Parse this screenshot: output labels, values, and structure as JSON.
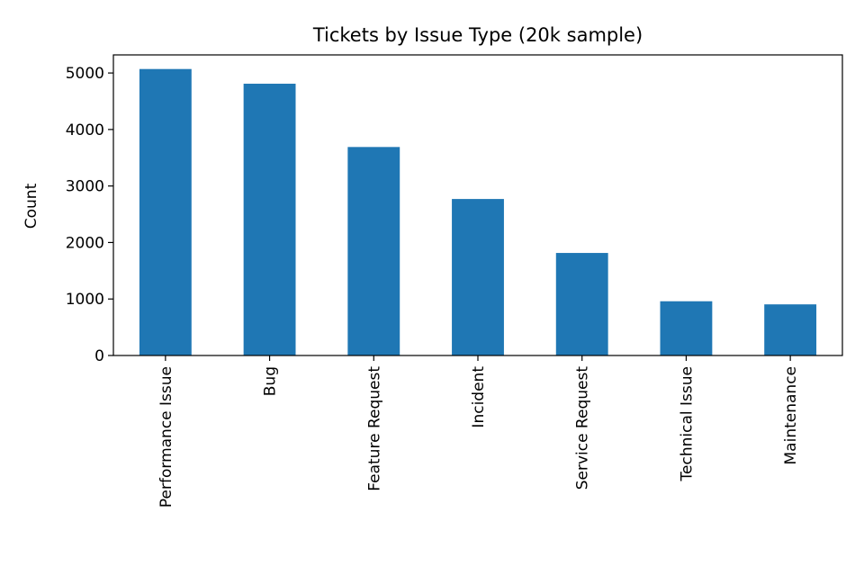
{
  "chart_data": {
    "type": "bar",
    "title": "Tickets by Issue Type (20k sample)",
    "xlabel": "",
    "ylabel": "Count",
    "categories": [
      "Performance Issue",
      "Bug",
      "Feature Request",
      "Incident",
      "Service Request",
      "Technical Issue",
      "Maintenance"
    ],
    "values": [
      5070,
      4810,
      3690,
      2770,
      1815,
      960,
      905
    ],
    "ylim": [
      0,
      5320
    ],
    "yticks": [
      0,
      1000,
      2000,
      3000,
      4000,
      5000
    ],
    "grid": false,
    "legend": "none",
    "bar_color": "#1f77b4"
  }
}
